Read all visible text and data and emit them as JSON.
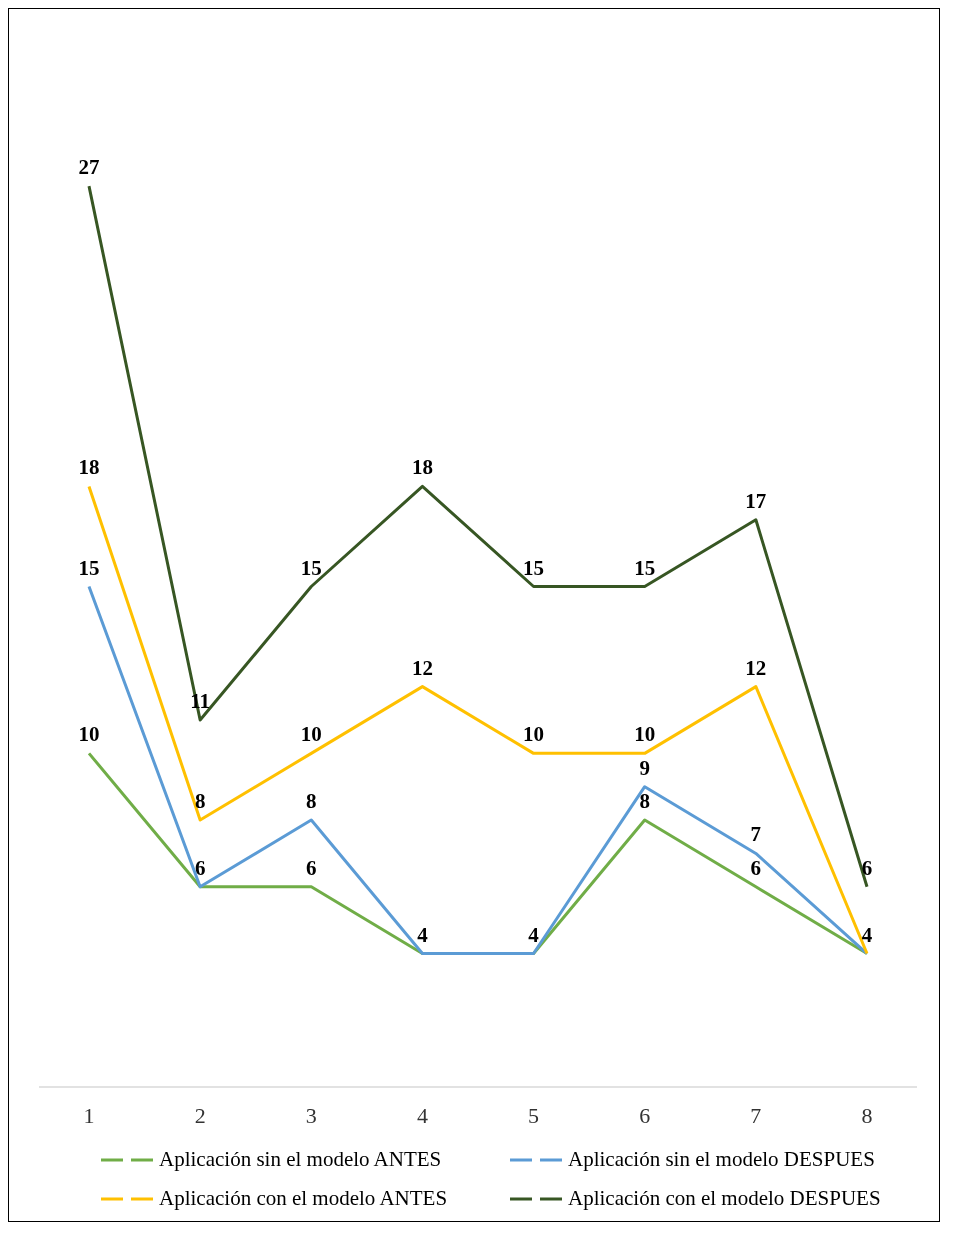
{
  "chart_data": {
    "type": "line",
    "categories": [
      "1",
      "2",
      "3",
      "4",
      "5",
      "6",
      "7",
      "8"
    ],
    "series": [
      {
        "name": "Aplicación sin el modelo  ANTES",
        "color": "#70ad47",
        "values": [
          10,
          6,
          6,
          4,
          4,
          8,
          6,
          4
        ],
        "value_labels": [
          "10",
          "6",
          "6",
          "4",
          "4",
          "8",
          "6",
          "4"
        ]
      },
      {
        "name": "Aplicación sin el modelo  DESPUES",
        "color": "#5b9bd5",
        "values": [
          15,
          6,
          8,
          4,
          4,
          9,
          7,
          4
        ],
        "value_labels": [
          "15",
          null,
          "8",
          null,
          null,
          "9",
          "7",
          null
        ]
      },
      {
        "name": "Aplicación con el modelo ANTES",
        "color": "#ffc000",
        "values": [
          18,
          8,
          10,
          12,
          10,
          10,
          12,
          4
        ],
        "value_labels": [
          "18",
          "8",
          "10",
          "12",
          "10",
          "10",
          "12",
          null
        ]
      },
      {
        "name": "Aplicación con el modelo DESPUES",
        "color": "#375623",
        "values": [
          27,
          11,
          15,
          18,
          15,
          15,
          17,
          6
        ],
        "value_labels": [
          "27",
          "11",
          "15",
          "18",
          "15",
          "15",
          "17",
          "6"
        ]
      }
    ],
    "legend": "bottom",
    "marker": "none",
    "line_style": "solid",
    "tick_labels": "x"
  }
}
